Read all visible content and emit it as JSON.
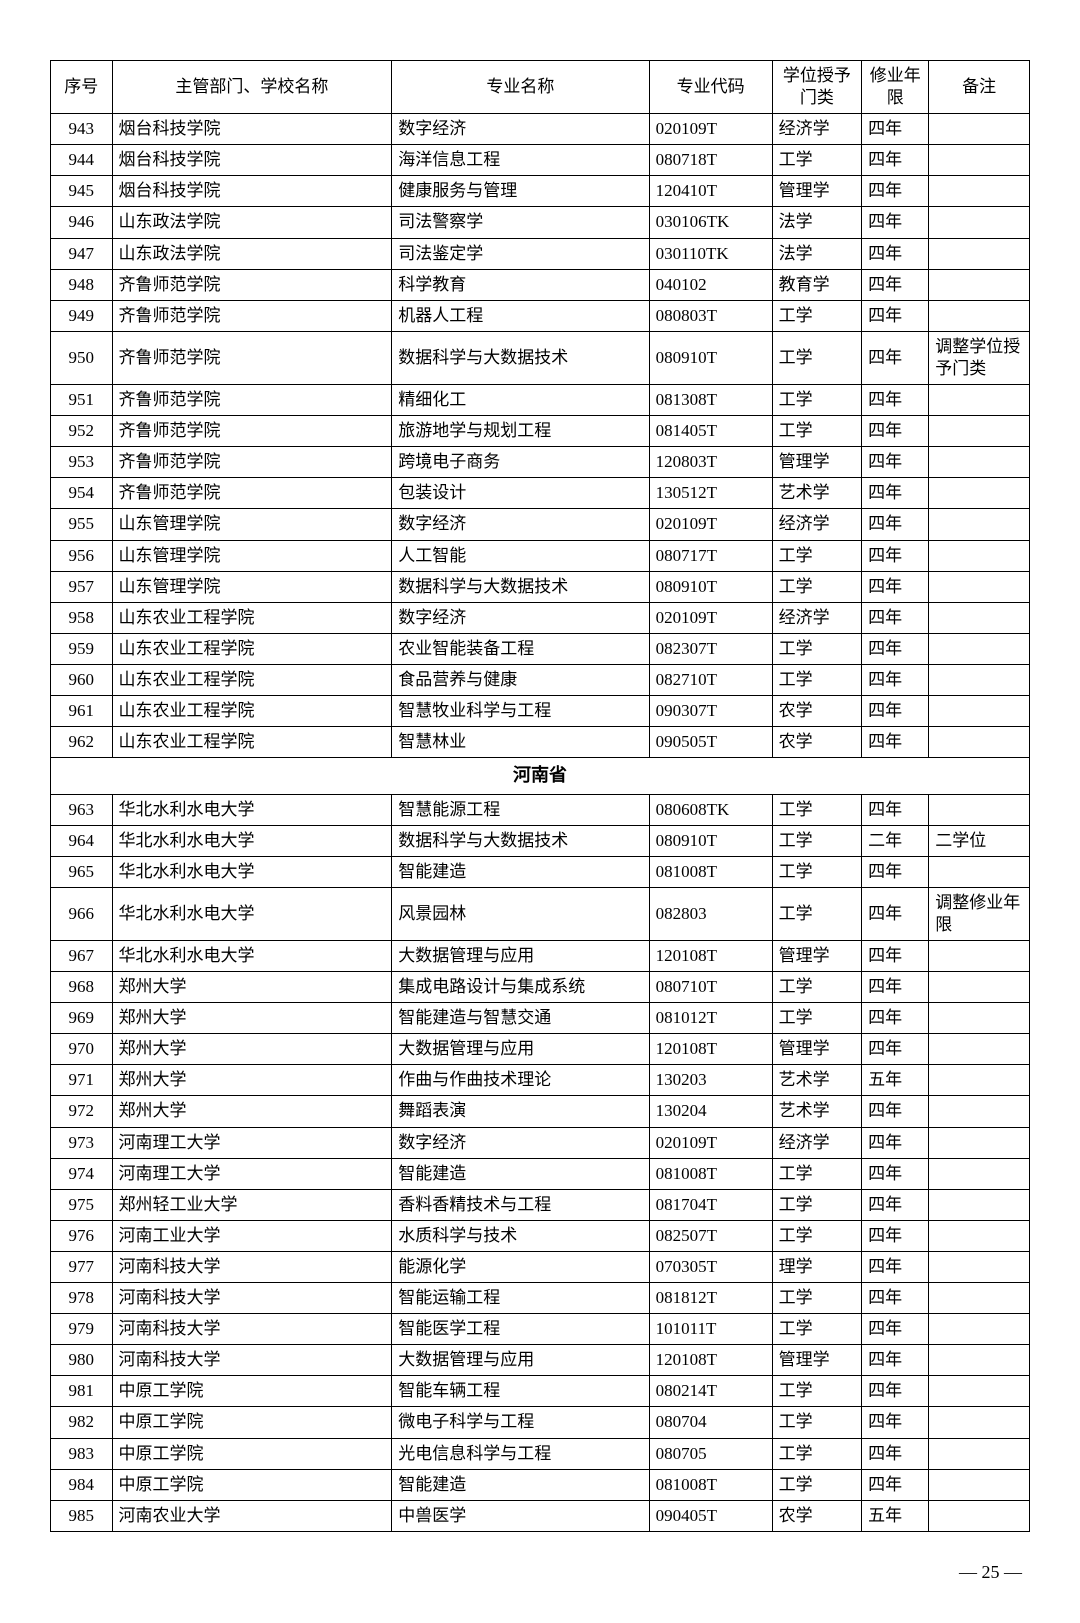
{
  "columns": [
    "序号",
    "主管部门、学校名称",
    "专业名称",
    "专业代码",
    "学位授予门类",
    "修业年限",
    "备注"
  ],
  "section_label": "河南省",
  "page_number": "— 25 —",
  "rows_top": [
    [
      "943",
      "烟台科技学院",
      "数字经济",
      "020109T",
      "经济学",
      "四年",
      ""
    ],
    [
      "944",
      "烟台科技学院",
      "海洋信息工程",
      "080718T",
      "工学",
      "四年",
      ""
    ],
    [
      "945",
      "烟台科技学院",
      "健康服务与管理",
      "120410T",
      "管理学",
      "四年",
      ""
    ],
    [
      "946",
      "山东政法学院",
      "司法警察学",
      "030106TK",
      "法学",
      "四年",
      ""
    ],
    [
      "947",
      "山东政法学院",
      "司法鉴定学",
      "030110TK",
      "法学",
      "四年",
      ""
    ],
    [
      "948",
      "齐鲁师范学院",
      "科学教育",
      "040102",
      "教育学",
      "四年",
      ""
    ],
    [
      "949",
      "齐鲁师范学院",
      "机器人工程",
      "080803T",
      "工学",
      "四年",
      ""
    ],
    [
      "950",
      "齐鲁师范学院",
      "数据科学与大数据技术",
      "080910T",
      "工学",
      "四年",
      "调整学位授予门类"
    ],
    [
      "951",
      "齐鲁师范学院",
      "精细化工",
      "081308T",
      "工学",
      "四年",
      ""
    ],
    [
      "952",
      "齐鲁师范学院",
      "旅游地学与规划工程",
      "081405T",
      "工学",
      "四年",
      ""
    ],
    [
      "953",
      "齐鲁师范学院",
      "跨境电子商务",
      "120803T",
      "管理学",
      "四年",
      ""
    ],
    [
      "954",
      "齐鲁师范学院",
      "包装设计",
      "130512T",
      "艺术学",
      "四年",
      ""
    ],
    [
      "955",
      "山东管理学院",
      "数字经济",
      "020109T",
      "经济学",
      "四年",
      ""
    ],
    [
      "956",
      "山东管理学院",
      "人工智能",
      "080717T",
      "工学",
      "四年",
      ""
    ],
    [
      "957",
      "山东管理学院",
      "数据科学与大数据技术",
      "080910T",
      "工学",
      "四年",
      ""
    ],
    [
      "958",
      "山东农业工程学院",
      "数字经济",
      "020109T",
      "经济学",
      "四年",
      ""
    ],
    [
      "959",
      "山东农业工程学院",
      "农业智能装备工程",
      "082307T",
      "工学",
      "四年",
      ""
    ],
    [
      "960",
      "山东农业工程学院",
      "食品营养与健康",
      "082710T",
      "工学",
      "四年",
      ""
    ],
    [
      "961",
      "山东农业工程学院",
      "智慧牧业科学与工程",
      "090307T",
      "农学",
      "四年",
      ""
    ],
    [
      "962",
      "山东农业工程学院",
      "智慧林业",
      "090505T",
      "农学",
      "四年",
      ""
    ]
  ],
  "rows_bottom": [
    [
      "963",
      "华北水利水电大学",
      "智慧能源工程",
      "080608TK",
      "工学",
      "四年",
      ""
    ],
    [
      "964",
      "华北水利水电大学",
      "数据科学与大数据技术",
      "080910T",
      "工学",
      "二年",
      "二学位"
    ],
    [
      "965",
      "华北水利水电大学",
      "智能建造",
      "081008T",
      "工学",
      "四年",
      ""
    ],
    [
      "966",
      "华北水利水电大学",
      "风景园林",
      "082803",
      "工学",
      "四年",
      "调整修业年限"
    ],
    [
      "967",
      "华北水利水电大学",
      "大数据管理与应用",
      "120108T",
      "管理学",
      "四年",
      ""
    ],
    [
      "968",
      "郑州大学",
      "集成电路设计与集成系统",
      "080710T",
      "工学",
      "四年",
      ""
    ],
    [
      "969",
      "郑州大学",
      "智能建造与智慧交通",
      "081012T",
      "工学",
      "四年",
      ""
    ],
    [
      "970",
      "郑州大学",
      "大数据管理与应用",
      "120108T",
      "管理学",
      "四年",
      ""
    ],
    [
      "971",
      "郑州大学",
      "作曲与作曲技术理论",
      "130203",
      "艺术学",
      "五年",
      ""
    ],
    [
      "972",
      "郑州大学",
      "舞蹈表演",
      "130204",
      "艺术学",
      "四年",
      ""
    ],
    [
      "973",
      "河南理工大学",
      "数字经济",
      "020109T",
      "经济学",
      "四年",
      ""
    ],
    [
      "974",
      "河南理工大学",
      "智能建造",
      "081008T",
      "工学",
      "四年",
      ""
    ],
    [
      "975",
      "郑州轻工业大学",
      "香料香精技术与工程",
      "081704T",
      "工学",
      "四年",
      ""
    ],
    [
      "976",
      "河南工业大学",
      "水质科学与技术",
      "082507T",
      "工学",
      "四年",
      ""
    ],
    [
      "977",
      "河南科技大学",
      "能源化学",
      "070305T",
      "理学",
      "四年",
      ""
    ],
    [
      "978",
      "河南科技大学",
      "智能运输工程",
      "081812T",
      "工学",
      "四年",
      ""
    ],
    [
      "979",
      "河南科技大学",
      "智能医学工程",
      "101011T",
      "工学",
      "四年",
      ""
    ],
    [
      "980",
      "河南科技大学",
      "大数据管理与应用",
      "120108T",
      "管理学",
      "四年",
      ""
    ],
    [
      "981",
      "中原工学院",
      "智能车辆工程",
      "080214T",
      "工学",
      "四年",
      ""
    ],
    [
      "982",
      "中原工学院",
      "微电子科学与工程",
      "080704",
      "工学",
      "四年",
      ""
    ],
    [
      "983",
      "中原工学院",
      "光电信息科学与工程",
      "080705",
      "工学",
      "四年",
      ""
    ],
    [
      "984",
      "中原工学院",
      "智能建造",
      "081008T",
      "工学",
      "四年",
      ""
    ],
    [
      "985",
      "河南农业大学",
      "中兽医学",
      "090405T",
      "农学",
      "五年",
      ""
    ]
  ]
}
